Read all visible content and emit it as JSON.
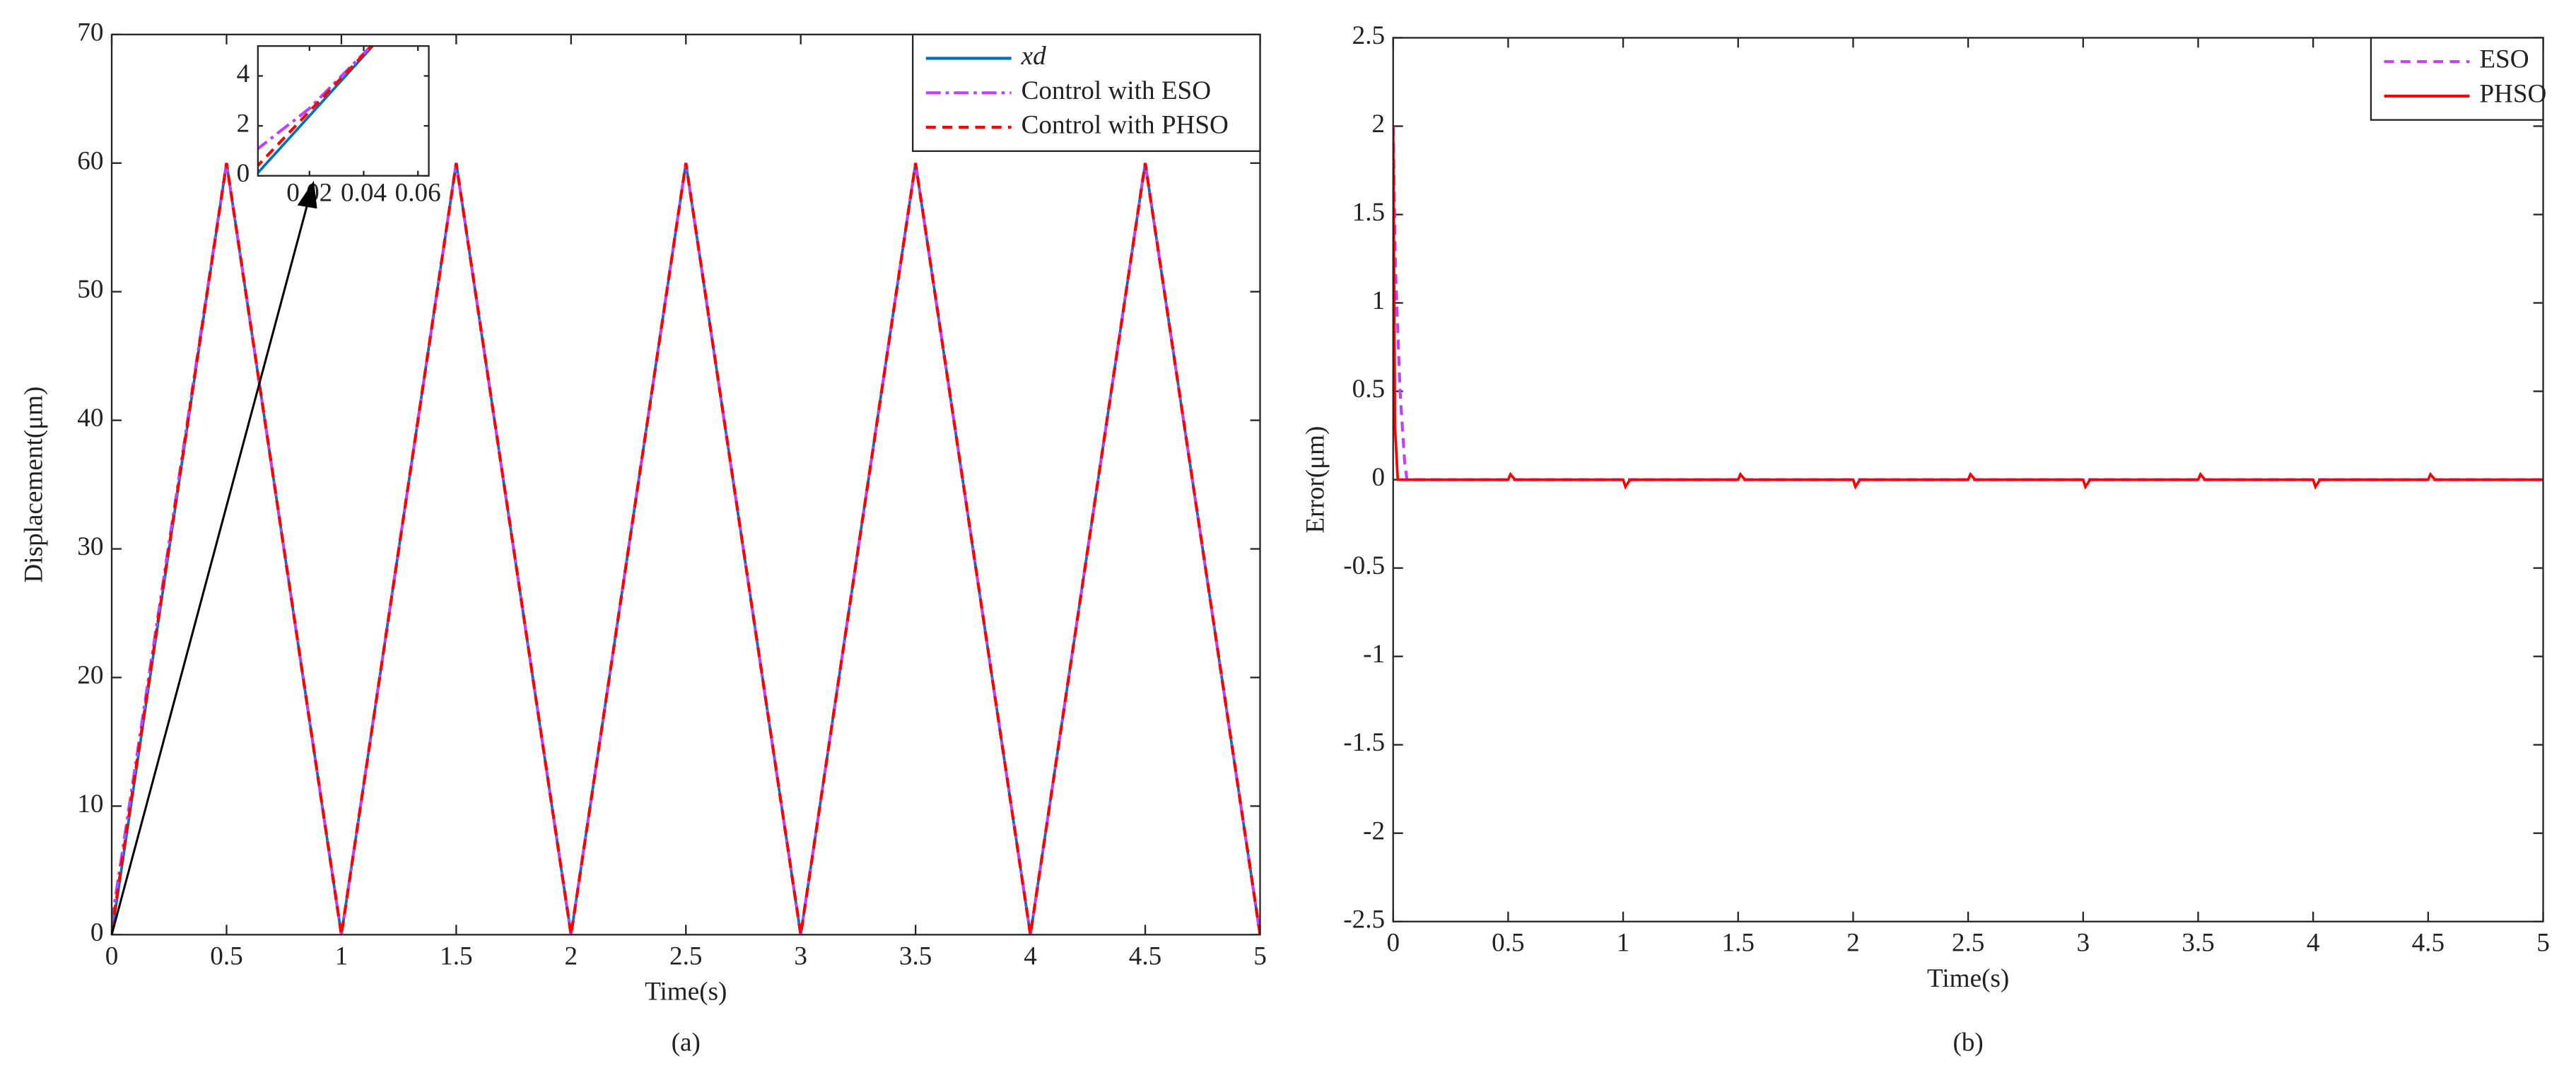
{
  "chart_data": [
    {
      "type": "line",
      "caption": "(a)",
      "xlabel": "Time(s)",
      "ylabel": "Displacement(μm)",
      "xlim": [
        0,
        5
      ],
      "ylim": [
        0,
        70
      ],
      "xticks": [
        0,
        0.5,
        1,
        1.5,
        2,
        2.5,
        3,
        3.5,
        4,
        4.5,
        5
      ],
      "yticks": [
        0,
        10,
        20,
        30,
        40,
        50,
        60,
        70
      ],
      "legend": "upper right",
      "series": [
        {
          "name": "xd",
          "color": "#0072bd",
          "style": "solid",
          "x": [
            0,
            0.5,
            1,
            1.5,
            2,
            2.5,
            3,
            3.5,
            4,
            4.5,
            5
          ],
          "values": [
            0,
            60,
            0,
            60,
            0,
            60,
            0,
            60,
            0,
            60,
            0
          ]
        },
        {
          "name": "Control with ESO",
          "color": "#bf40ff",
          "style": "dashdot",
          "x": [
            0,
            0.5,
            1,
            1.5,
            2,
            2.5,
            3,
            3.5,
            4,
            4.5,
            5
          ],
          "values": [
            1,
            60,
            0,
            60,
            0,
            60,
            0,
            60,
            0,
            60,
            0
          ]
        },
        {
          "name": "Control with PHSO",
          "color": "#ff0000",
          "style": "dashed",
          "x": [
            0,
            0.5,
            1,
            1.5,
            2,
            2.5,
            3,
            3.5,
            4,
            4.5,
            5
          ],
          "values": [
            0.3,
            60,
            0,
            60,
            0,
            60,
            0,
            60,
            0,
            60,
            0
          ]
        }
      ],
      "inset": {
        "type": "line",
        "xlim": [
          0.001,
          0.064
        ],
        "ylim": [
          0,
          5.2
        ],
        "xticks": [
          0.02,
          0.04,
          0.06
        ],
        "yticks": [
          0,
          2,
          4
        ],
        "series": [
          {
            "color": "#0072bd",
            "style": "solid",
            "x": [
              0,
              0.05
            ],
            "values": [
              0,
              6
            ]
          },
          {
            "color": "#bf40ff",
            "style": "dashdot",
            "x": [
              0,
              0.02,
              0.05
            ],
            "values": [
              1,
              2.7,
              6
            ]
          },
          {
            "color": "#ff0000",
            "style": "dashed",
            "x": [
              0,
              0.05
            ],
            "values": [
              0.3,
              6
            ]
          }
        ]
      }
    },
    {
      "type": "line",
      "caption": "(b)",
      "xlabel": "Time(s)",
      "ylabel": "Error(μm)",
      "xlim": [
        0,
        5
      ],
      "ylim": [
        -2.5,
        2.5
      ],
      "xticks": [
        0,
        0.5,
        1,
        1.5,
        2,
        2.5,
        3,
        3.5,
        4,
        4.5,
        5
      ],
      "yticks": [
        -2.5,
        -2,
        -1.5,
        -1,
        -0.5,
        0,
        0.5,
        1,
        1.5,
        2,
        2.5
      ],
      "legend": "upper right",
      "series": [
        {
          "name": "ESO",
          "color": "#bf40ff",
          "style": "dashed",
          "x": [
            0,
            0.01,
            0.03,
            0.05,
            0.06,
            5
          ],
          "values": [
            2,
            1.2,
            0.5,
            0.1,
            0,
            0
          ]
        },
        {
          "name": "PHSO",
          "color": "#ff0000",
          "style": "solid",
          "x": [
            0,
            0.008,
            0.02,
            0.5,
            0.51,
            0.53,
            1,
            1.01,
            1.03,
            1.5,
            1.51,
            1.53,
            2,
            2.01,
            2.03,
            2.5,
            2.51,
            2.53,
            3,
            3.01,
            3.03,
            3.5,
            3.51,
            3.53,
            4,
            4.01,
            4.03,
            4.5,
            4.51,
            4.53,
            5
          ],
          "values": [
            2,
            0.3,
            0,
            0,
            0.03,
            0,
            0,
            -0.04,
            0,
            0,
            0.03,
            0,
            0,
            -0.04,
            0,
            0,
            0.03,
            0,
            0,
            -0.04,
            0,
            0,
            0.03,
            0,
            0,
            -0.04,
            0,
            0,
            0.03,
            0,
            0
          ]
        }
      ]
    }
  ]
}
